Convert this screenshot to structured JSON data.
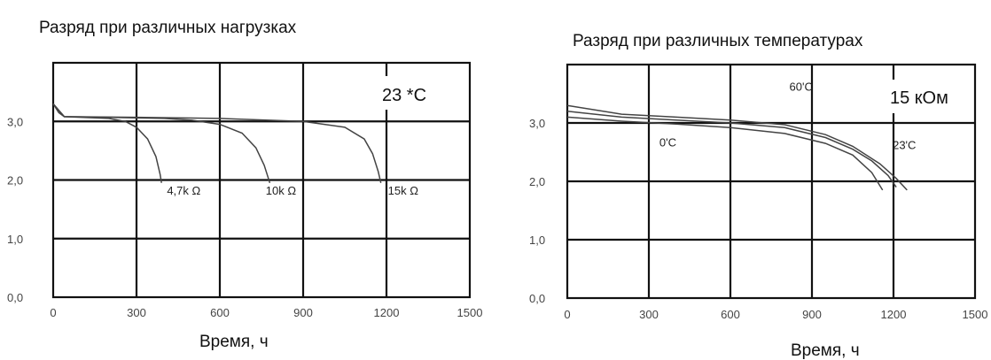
{
  "chart_data": [
    {
      "type": "line",
      "title": "Разряд при различных нагрузках",
      "xlabel": "Время, ч",
      "ylabel": "",
      "xlim": [
        0,
        1500
      ],
      "ylim": [
        0,
        4
      ],
      "x_ticks": [
        "0",
        "300",
        "600",
        "900",
        "1200",
        "1500"
      ],
      "y_ticks": [
        "0,0",
        "1,0",
        "2,0",
        "3,0"
      ],
      "grid": true,
      "badge": "23 *C",
      "series": [
        {
          "name": "4,7k Ω",
          "x": [
            0,
            20,
            40,
            100,
            200,
            260,
            300,
            340,
            370,
            385,
            390
          ],
          "y": [
            3.3,
            3.15,
            3.08,
            3.07,
            3.05,
            3.0,
            2.9,
            2.7,
            2.4,
            2.1,
            1.95
          ]
        },
        {
          "name": "10k Ω",
          "x": [
            0,
            40,
            200,
            400,
            500,
            600,
            680,
            730,
            760,
            780
          ],
          "y": [
            3.3,
            3.08,
            3.07,
            3.05,
            3.02,
            2.95,
            2.8,
            2.55,
            2.25,
            1.95
          ]
        },
        {
          "name": "15k Ω",
          "x": [
            0,
            40,
            300,
            600,
            900,
            1050,
            1120,
            1150,
            1170,
            1180
          ],
          "y": [
            3.3,
            3.08,
            3.07,
            3.05,
            3.0,
            2.9,
            2.7,
            2.45,
            2.15,
            1.95
          ]
        }
      ],
      "annotations": [
        {
          "text": "4,7k Ω",
          "x": 470,
          "y": 1.75
        },
        {
          "text": "10k Ω",
          "x": 820,
          "y": 1.75
        },
        {
          "text": "15k Ω",
          "x": 1260,
          "y": 1.75
        }
      ]
    },
    {
      "type": "line",
      "title": "Разряд при различных температурах",
      "xlabel": "Время, ч",
      "ylabel": "",
      "xlim": [
        0,
        1500
      ],
      "ylim": [
        0,
        4
      ],
      "x_ticks": [
        "0",
        "300",
        "600",
        "900",
        "1200",
        "1500"
      ],
      "y_ticks": [
        "0,0",
        "1,0",
        "2,0",
        "3,0"
      ],
      "grid": true,
      "badge": "15 кОм",
      "series": [
        {
          "name": "0'C",
          "x": [
            0,
            200,
            400,
            600,
            800,
            950,
            1050,
            1120,
            1160
          ],
          "y": [
            3.1,
            3.03,
            2.98,
            2.92,
            2.82,
            2.65,
            2.45,
            2.15,
            1.85
          ]
        },
        {
          "name": "23'C",
          "x": [
            0,
            200,
            400,
            600,
            800,
            950,
            1050,
            1120,
            1180,
            1210
          ],
          "y": [
            3.2,
            3.1,
            3.05,
            3.0,
            2.92,
            2.75,
            2.55,
            2.35,
            2.1,
            1.9
          ]
        },
        {
          "name": "60'C",
          "x": [
            0,
            200,
            400,
            600,
            800,
            950,
            1050,
            1150,
            1210,
            1250
          ],
          "y": [
            3.3,
            3.15,
            3.1,
            3.05,
            2.97,
            2.8,
            2.6,
            2.3,
            2.05,
            1.85
          ]
        }
      ],
      "annotations": [
        {
          "text": "60'C",
          "x": 860,
          "y": 3.55
        },
        {
          "text": "0'C",
          "x": 370,
          "y": 2.6
        },
        {
          "text": "23'C",
          "x": 1240,
          "y": 2.55
        }
      ]
    }
  ]
}
